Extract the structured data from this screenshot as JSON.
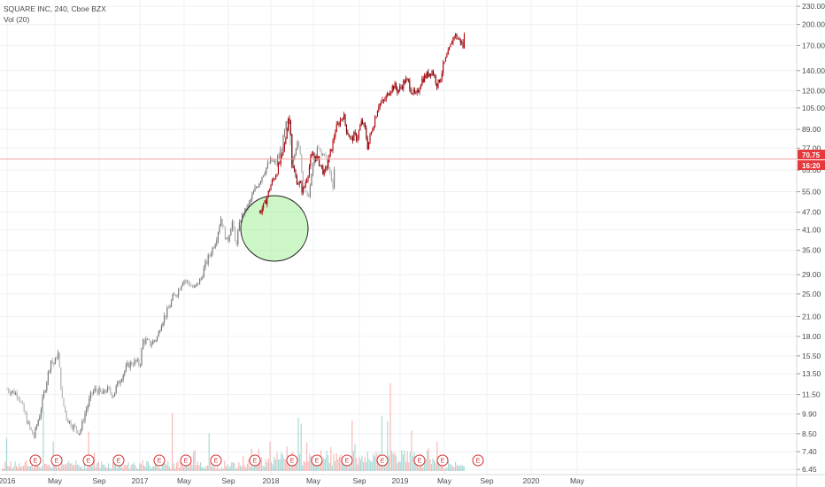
{
  "header": {
    "title": "SQUARE INC, 240, Cboe BZX",
    "indicator": "Vol (20)"
  },
  "colors": {
    "background": "#ffffff",
    "grid": "#eef0f3",
    "up_candle": "#a0a0a0",
    "down_candle": "#9a9a9a",
    "projection": "#b0000a",
    "price_line": "#f0a0a0",
    "price_badge": "#e5393d",
    "vol_up": "#26a69a",
    "vol_down": "#ef5350",
    "ellipse_fill": "#a5f09a",
    "ellipse_stroke": "#1d1d1d",
    "earnings": "#d32f2f"
  },
  "chart_data": {
    "type": "candlestick",
    "scale": "log",
    "y_ticks": [
      "6.45",
      "7.40",
      "8.50",
      "9.90",
      "11.50",
      "13.50",
      "15.50",
      "18.00",
      "21.00",
      "25.00",
      "29.00",
      "35.00",
      "41.00",
      "47.00",
      "55.00",
      "65.00",
      "77.00",
      "89.00",
      "105.00",
      "120.00",
      "140.00",
      "170.00",
      "200.00",
      "230.00"
    ],
    "x_ticks": [
      "2016",
      "May",
      "Sep",
      "2017",
      "May",
      "Sep",
      "2018",
      "May",
      "Sep",
      "2019",
      "May",
      "Sep",
      "2020",
      "May"
    ],
    "ylim": [
      6.2,
      235
    ],
    "current_price": "70.75",
    "countdown": "16:20",
    "historical_path": [
      [
        "2016-01",
        12
      ],
      [
        "2016-02",
        11.5
      ],
      [
        "2016-03",
        9
      ],
      [
        "2016-03-15",
        8.3
      ],
      [
        "2016-04",
        10
      ],
      [
        "2016-04-20",
        13
      ],
      [
        "2016-05",
        15
      ],
      [
        "2016-05-10",
        14.5
      ],
      [
        "2016-05-20",
        16
      ],
      [
        "2016-06",
        11
      ],
      [
        "2016-06-15",
        9.5
      ],
      [
        "2016-07",
        9
      ],
      [
        "2016-07-20",
        8.6
      ],
      [
        "2016-08",
        9.8
      ],
      [
        "2016-08-20",
        11.5
      ],
      [
        "2016-09",
        12
      ],
      [
        "2016-09-20",
        11.5
      ],
      [
        "2016-10",
        12
      ],
      [
        "2016-10-20",
        11.5
      ],
      [
        "2016-11",
        12.5
      ],
      [
        "2016-11-20",
        13.8
      ],
      [
        "2016-12",
        14.5
      ],
      [
        "2016-12-20",
        14.8
      ],
      [
        "2017-01",
        14.5
      ],
      [
        "2017-01-10",
        17.5
      ],
      [
        "2017-02",
        17
      ],
      [
        "2017-02-20",
        18
      ],
      [
        "2017-03",
        20
      ],
      [
        "2017-03-20",
        22
      ],
      [
        "2017-04",
        24
      ],
      [
        "2017-04-20",
        26
      ],
      [
        "2017-05",
        28
      ],
      [
        "2017-05-20",
        27
      ],
      [
        "2017-06",
        26
      ],
      [
        "2017-06-20",
        28
      ],
      [
        "2017-07",
        31
      ],
      [
        "2017-07-20",
        35
      ],
      [
        "2017-08",
        38
      ],
      [
        "2017-08-15",
        45
      ],
      [
        "2017-08-25",
        40
      ],
      [
        "2017-09",
        37
      ],
      [
        "2017-09-15",
        44
      ],
      [
        "2017-09-25",
        36
      ],
      [
        "2017-10",
        40
      ],
      [
        "2017-10-10",
        45
      ],
      [
        "2017-10-20",
        47
      ],
      [
        "2017-11",
        50
      ],
      [
        "2017-11-15",
        55
      ],
      [
        "2017-12",
        60
      ],
      [
        "2017-12-15",
        65
      ],
      [
        "2018-01",
        70
      ],
      [
        "2018-01-15",
        68
      ],
      [
        "2018-02",
        78
      ],
      [
        "2018-02-15",
        95
      ],
      [
        "2018-02-25",
        80
      ],
      [
        "2018-03",
        70
      ],
      [
        "2018-03-15",
        80
      ],
      [
        "2018-03-25",
        75
      ],
      [
        "2018-04",
        58
      ],
      [
        "2018-04-15",
        52
      ],
      [
        "2018-04-25",
        60
      ],
      [
        "2018-05",
        70
      ],
      [
        "2018-05-15",
        77
      ],
      [
        "2018-05-25",
        72
      ],
      [
        "2018-06",
        75
      ],
      [
        "2018-06-15",
        65
      ],
      [
        "2018-06-25",
        58
      ],
      [
        "2018-07",
        70
      ]
    ],
    "projection_path": [
      [
        "2017-12",
        47
      ],
      [
        "2017-12-15",
        50
      ],
      [
        "2018-01",
        58
      ],
      [
        "2018-01-15",
        63
      ],
      [
        "2018-02",
        72
      ],
      [
        "2018-02-10",
        80
      ],
      [
        "2018-02-20",
        100
      ],
      [
        "2018-02-28",
        85
      ],
      [
        "2018-03",
        68
      ],
      [
        "2018-03-15",
        60
      ],
      [
        "2018-03-25",
        58
      ],
      [
        "2018-04",
        55
      ],
      [
        "2018-04-15",
        63
      ],
      [
        "2018-04-25",
        72
      ],
      [
        "2018-05",
        73
      ],
      [
        "2018-05-15",
        70
      ],
      [
        "2018-05-25",
        66
      ],
      [
        "2018-06",
        63
      ],
      [
        "2018-06-15",
        72
      ],
      [
        "2018-06-25",
        80
      ],
      [
        "2018-07",
        88
      ],
      [
        "2018-07-15",
        95
      ],
      [
        "2018-07-25",
        100
      ],
      [
        "2018-08",
        90
      ],
      [
        "2018-08-15",
        82
      ],
      [
        "2018-08-25",
        85
      ],
      [
        "2018-09",
        83
      ],
      [
        "2018-09-15",
        95
      ],
      [
        "2018-09-25",
        88
      ],
      [
        "2018-10",
        78
      ],
      [
        "2018-10-15",
        90
      ],
      [
        "2018-10-25",
        100
      ],
      [
        "2018-11",
        108
      ],
      [
        "2018-11-15",
        110
      ],
      [
        "2018-11-25",
        115
      ],
      [
        "2018-12",
        120
      ],
      [
        "2018-12-15",
        125
      ],
      [
        "2018-12-25",
        120
      ],
      [
        "2019-01",
        122
      ],
      [
        "2019-01-15",
        130
      ],
      [
        "2019-01-25",
        128
      ],
      [
        "2019-02",
        120
      ],
      [
        "2019-02-15",
        115
      ],
      [
        "2019-02-25",
        125
      ],
      [
        "2019-03",
        130
      ],
      [
        "2019-03-15",
        135
      ],
      [
        "2019-03-25",
        138
      ],
      [
        "2019-04",
        140
      ],
      [
        "2019-04-15",
        125
      ],
      [
        "2019-04-25",
        135
      ],
      [
        "2019-05",
        145
      ],
      [
        "2019-05-15",
        160
      ],
      [
        "2019-05-25",
        175
      ],
      [
        "2019-06",
        185
      ],
      [
        "2019-06-10",
        180
      ],
      [
        "2019-06-20",
        175
      ],
      [
        "2019-06-25",
        168
      ],
      [
        "2019-07",
        195
      ]
    ],
    "ellipse_label": "",
    "earnings_label": "E"
  }
}
